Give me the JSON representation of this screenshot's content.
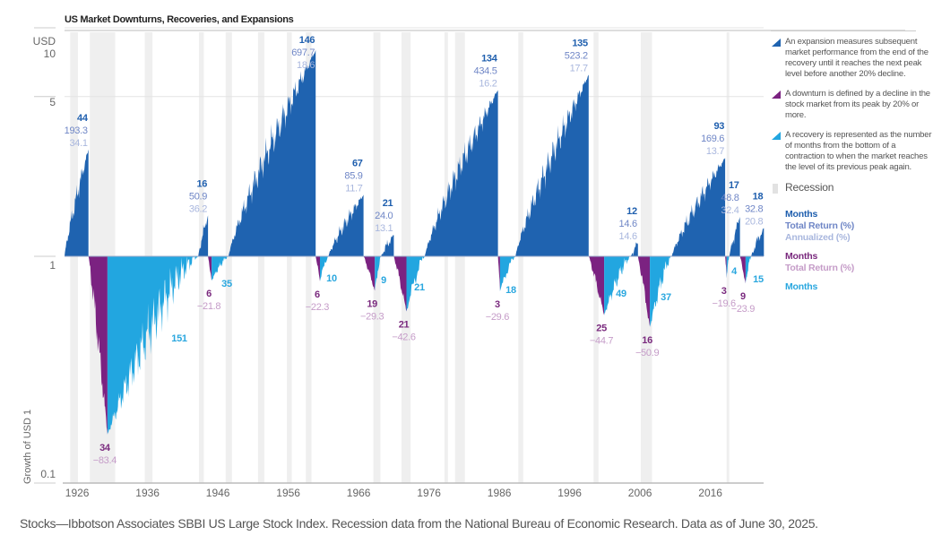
{
  "colors": {
    "expansion": "#1f63b0",
    "downturn": "#7b2281",
    "recovery": "#22a6e0",
    "recession": "#efefef",
    "exp_months": "#1f5fae",
    "exp_return": "#6f86c6",
    "exp_annual": "#a9b7de",
    "down_months": "#7a2a7e",
    "down_return": "#c59cc8",
    "rec_months": "#2aa7df"
  },
  "chart_data": {
    "type": "area",
    "title": "US Market Downturns, Recoveries, and Expansions",
    "ylabel": "Growth of USD 1",
    "yunit": "USD",
    "yscale": "log",
    "ylim": [
      0.1,
      10
    ],
    "yticks": [
      {
        "value": 10,
        "label": "10"
      },
      {
        "value": 5,
        "label": "5"
      },
      {
        "value": 1,
        "label": "1"
      },
      {
        "value": 0.1,
        "label": "0.1"
      }
    ],
    "xticks": [
      "1926",
      "1936",
      "1946",
      "1956",
      "1966",
      "1976",
      "1986",
      "1996",
      "2006",
      "2016"
    ],
    "xlim": [
      1926,
      2025.5
    ],
    "segments": [
      {
        "type": "expansion",
        "start": 1926.0,
        "end": 1929.4,
        "months": "44",
        "total_return": "193.3",
        "annualized": "34.1"
      },
      {
        "type": "downturn",
        "start": 1929.4,
        "end": 1932.1,
        "months": "34",
        "total_return": "−83.4"
      },
      {
        "type": "recovery",
        "start": 1932.1,
        "end": 1945.0,
        "months": "151"
      },
      {
        "type": "expansion",
        "start": 1945.0,
        "end": 1946.4,
        "months": "16",
        "total_return": "50.9",
        "annualized": "36.2"
      },
      {
        "type": "downturn",
        "start": 1946.4,
        "end": 1946.9,
        "months": "6",
        "total_return": "−21.8"
      },
      {
        "type": "recovery",
        "start": 1946.9,
        "end": 1949.3,
        "months": "35"
      },
      {
        "type": "expansion",
        "start": 1949.3,
        "end": 1961.7,
        "months": "146",
        "total_return": "697.7",
        "annualized": "18.6"
      },
      {
        "type": "downturn",
        "start": 1961.7,
        "end": 1962.3,
        "months": "6",
        "total_return": "−22.3"
      },
      {
        "type": "recovery",
        "start": 1962.3,
        "end": 1963.5,
        "months": "10"
      },
      {
        "type": "expansion",
        "start": 1963.5,
        "end": 1968.5,
        "months": "67",
        "total_return": "85.9",
        "annualized": "11.7"
      },
      {
        "type": "downturn",
        "start": 1968.5,
        "end": 1970.1,
        "months": "19",
        "total_return": "−29.3"
      },
      {
        "type": "recovery",
        "start": 1970.1,
        "end": 1971.0,
        "months": "9"
      },
      {
        "type": "expansion",
        "start": 1971.0,
        "end": 1972.8,
        "months": "21",
        "total_return": "24.0",
        "annualized": "13.1"
      },
      {
        "type": "downturn",
        "start": 1972.8,
        "end": 1974.6,
        "months": "21",
        "total_return": "−42.6"
      },
      {
        "type": "recovery",
        "start": 1974.6,
        "end": 1977.2,
        "months": "21"
      },
      {
        "type": "expansion",
        "start": 1977.2,
        "end": 1987.6,
        "months": "134",
        "total_return": "434.5",
        "annualized": "16.2"
      },
      {
        "type": "downturn",
        "start": 1987.6,
        "end": 1987.9,
        "months": "3",
        "total_return": "−29.6"
      },
      {
        "type": "recovery",
        "start": 1987.9,
        "end": 1990.1,
        "months": "18"
      },
      {
        "type": "expansion",
        "start": 1990.1,
        "end": 2000.5,
        "months": "135",
        "total_return": "523.2",
        "annualized": "17.7"
      },
      {
        "type": "downturn",
        "start": 2000.5,
        "end": 2002.7,
        "months": "25",
        "total_return": "−44.7"
      },
      {
        "type": "recovery",
        "start": 2002.7,
        "end": 2006.5,
        "months": "49"
      },
      {
        "type": "expansion",
        "start": 2006.5,
        "end": 2007.5,
        "months": "12",
        "total_return": "14.6",
        "annualized": "14.6"
      },
      {
        "type": "downturn",
        "start": 2007.5,
        "end": 2009.2,
        "months": "16",
        "total_return": "−50.9"
      },
      {
        "type": "recovery",
        "start": 2009.2,
        "end": 2012.3,
        "months": "37"
      },
      {
        "type": "expansion",
        "start": 2012.3,
        "end": 2019.9,
        "months": "93",
        "total_return": "169.6",
        "annualized": "13.7"
      },
      {
        "type": "downturn",
        "start": 2019.9,
        "end": 2020.1,
        "months": "3",
        "total_return": "−19.6"
      },
      {
        "type": "recovery",
        "start": 2020.1,
        "end": 2020.5,
        "months": "4"
      },
      {
        "type": "expansion",
        "start": 2020.5,
        "end": 2022.0,
        "months": "17",
        "total_return": "48.8",
        "annualized": "32.4"
      },
      {
        "type": "downturn",
        "start": 2022.0,
        "end": 2022.8,
        "months": "9",
        "total_return": "−23.9"
      },
      {
        "type": "recovery",
        "start": 2022.8,
        "end": 2023.6,
        "months": "15"
      },
      {
        "type": "expansion",
        "start": 2023.6,
        "end": 2025.4,
        "months": "18",
        "total_return": "32.8",
        "annualized": "20.8"
      }
    ],
    "recessions": [
      [
        1926.8,
        1927.9
      ],
      [
        1929.6,
        1933.2
      ],
      [
        1937.4,
        1938.5
      ],
      [
        1945.1,
        1945.8
      ],
      [
        1948.9,
        1949.8
      ],
      [
        1953.5,
        1954.4
      ],
      [
        1957.6,
        1958.3
      ],
      [
        1960.3,
        1961.1
      ],
      [
        1969.9,
        1970.9
      ],
      [
        1973.9,
        1975.2
      ],
      [
        1980.0,
        1980.5
      ],
      [
        1981.5,
        1982.9
      ],
      [
        1990.5,
        1991.2
      ],
      [
        2001.2,
        2001.9
      ],
      [
        2007.9,
        2009.5
      ],
      [
        2020.1,
        2020.4
      ]
    ]
  },
  "legend": {
    "expansion_text": "An expansion measures subsequent market performance from the end of the recovery until it reaches the next peak level before another 20% decline.",
    "downturn_text": "A downturn is defined by a decline in the stock market from its peak by 20% or more.",
    "recovery_text": "A recovery is represented as the number of months from the bottom of a contraction to when the market reaches the level of its previous peak again.",
    "recession": "Recession",
    "exp_months": "Months",
    "exp_total": "Total Return (%)",
    "exp_annual": "Annualized (%)",
    "down_months": "Months",
    "down_total": "Total Return (%)",
    "rec_months": "Months"
  },
  "footer": "Stocks—Ibbotson Associates SBBI US Large Stock Index. Recession data from the National Bureau of Economic Research. Data as of June 30, 2025."
}
